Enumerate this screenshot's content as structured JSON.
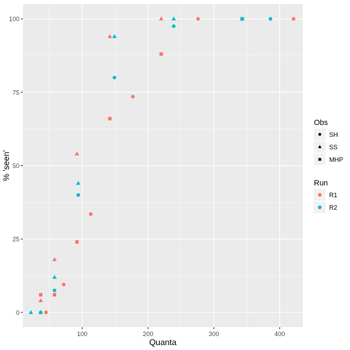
{
  "chart_data": {
    "type": "scatter",
    "xlabel": "Quanta",
    "ylabel": "% 'seen'",
    "xlim": [
      10,
      435
    ],
    "ylim": [
      -5,
      105
    ],
    "x_ticks": [
      100,
      200,
      300,
      400
    ],
    "y_ticks": [
      0,
      25,
      50,
      75,
      100
    ],
    "grid": true,
    "legend_position": "right",
    "colors": {
      "R1": "#F8766D",
      "R2": "#00BFC4"
    },
    "legends": [
      {
        "title": "Obs",
        "items": [
          {
            "label": "SH",
            "shape": "circle"
          },
          {
            "label": "SS",
            "shape": "triangle"
          },
          {
            "label": "MHP",
            "shape": "square"
          }
        ]
      },
      {
        "title": "Run",
        "items": [
          {
            "label": "R1",
            "color": "#F8766D"
          },
          {
            "label": "R2",
            "color": "#00BFC4"
          }
        ]
      }
    ],
    "points": [
      {
        "run": "R1",
        "obs": "SH",
        "x": 45,
        "y": 0
      },
      {
        "run": "R1",
        "obs": "SH",
        "x": 72,
        "y": 9.5
      },
      {
        "run": "R1",
        "obs": "SH",
        "x": 113,
        "y": 33.5
      },
      {
        "run": "R1",
        "obs": "SH",
        "x": 177,
        "y": 73.5
      },
      {
        "run": "R1",
        "obs": "SH",
        "x": 276,
        "y": 100
      },
      {
        "run": "R1",
        "obs": "SH",
        "x": 421,
        "y": 100
      },
      {
        "run": "R1",
        "obs": "SS",
        "x": 37,
        "y": 4
      },
      {
        "run": "R1",
        "obs": "SS",
        "x": 58,
        "y": 18
      },
      {
        "run": "R1",
        "obs": "SS",
        "x": 92,
        "y": 54
      },
      {
        "run": "R1",
        "obs": "SS",
        "x": 142,
        "y": 94
      },
      {
        "run": "R1",
        "obs": "SS",
        "x": 220,
        "y": 100
      },
      {
        "run": "R1",
        "obs": "MHP",
        "x": 37,
        "y": 6
      },
      {
        "run": "R1",
        "obs": "MHP",
        "x": 58,
        "y": 6
      },
      {
        "run": "R1",
        "obs": "MHP",
        "x": 92,
        "y": 24
      },
      {
        "run": "R1",
        "obs": "MHP",
        "x": 142,
        "y": 66
      },
      {
        "run": "R1",
        "obs": "MHP",
        "x": 220,
        "y": 88
      },
      {
        "run": "R1",
        "obs": "MHP",
        "x": 343,
        "y": 100
      },
      {
        "run": "R2",
        "obs": "SH",
        "x": 37,
        "y": 0
      },
      {
        "run": "R2",
        "obs": "SH",
        "x": 58,
        "y": 7.5
      },
      {
        "run": "R2",
        "obs": "SH",
        "x": 94,
        "y": 40
      },
      {
        "run": "R2",
        "obs": "SH",
        "x": 149,
        "y": 80
      },
      {
        "run": "R2",
        "obs": "SH",
        "x": 239,
        "y": 97.5
      },
      {
        "run": "R2",
        "obs": "SH",
        "x": 386,
        "y": 100
      },
      {
        "run": "R2",
        "obs": "SS",
        "x": 22,
        "y": 0
      },
      {
        "run": "R2",
        "obs": "SS",
        "x": 37,
        "y": 0
      },
      {
        "run": "R2",
        "obs": "SS",
        "x": 58,
        "y": 12
      },
      {
        "run": "R2",
        "obs": "SS",
        "x": 94,
        "y": 44
      },
      {
        "run": "R2",
        "obs": "SS",
        "x": 149,
        "y": 94
      },
      {
        "run": "R2",
        "obs": "SS",
        "x": 239,
        "y": 100
      },
      {
        "run": "R2",
        "obs": "MHP",
        "x": 343,
        "y": 100
      }
    ]
  }
}
